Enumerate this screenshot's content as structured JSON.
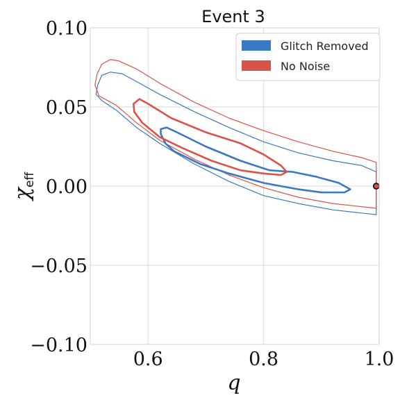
{
  "chart_data": {
    "type": "contour",
    "title": "Event 3",
    "xlabel": "q",
    "ylabel": "χ",
    "ylabel_sub": "eff",
    "xlim": [
      0.5,
      1.0
    ],
    "ylim": [
      -0.1,
      0.1
    ],
    "x_ticks": [
      0.6,
      0.8,
      1.0
    ],
    "x_tick_labels": [
      "0.6",
      "0.8",
      "1.0"
    ],
    "y_ticks": [
      -0.1,
      -0.05,
      0.0,
      0.05,
      0.1
    ],
    "y_tick_labels": [
      "−0.10",
      "−0.05",
      "0.00",
      "0.05",
      "0.10"
    ],
    "grid": true,
    "legend_position": "top-right",
    "series": [
      {
        "name": "Glitch Removed",
        "color": "#3a78c3",
        "contours": [
          {
            "level": "outer",
            "points": [
              [
                0.51,
                0.058
              ],
              [
                0.513,
                0.064
              ],
              [
                0.52,
                0.07
              ],
              [
                0.535,
                0.072
              ],
              [
                0.555,
                0.071
              ],
              [
                0.58,
                0.066
              ],
              [
                0.62,
                0.058
              ],
              [
                0.68,
                0.047
              ],
              [
                0.74,
                0.037
              ],
              [
                0.8,
                0.028
              ],
              [
                0.86,
                0.021
              ],
              [
                0.92,
                0.016
              ],
              [
                0.97,
                0.013
              ],
              [
                0.995,
                0.009
              ],
              [
                0.995,
                -0.018
              ],
              [
                0.97,
                -0.017
              ],
              [
                0.92,
                -0.015
              ],
              [
                0.86,
                -0.011
              ],
              [
                0.8,
                -0.006
              ],
              [
                0.74,
                0.003
              ],
              [
                0.68,
                0.014
              ],
              [
                0.62,
                0.027
              ],
              [
                0.58,
                0.037
              ],
              [
                0.545,
                0.048
              ],
              [
                0.52,
                0.054
              ]
            ]
          },
          {
            "level": "inner",
            "points": [
              [
                0.622,
                0.036
              ],
              [
                0.632,
                0.037
              ],
              [
                0.65,
                0.034
              ],
              [
                0.7,
                0.025
              ],
              [
                0.76,
                0.016
              ],
              [
                0.81,
                0.01
              ],
              [
                0.85,
                0.009
              ],
              [
                0.89,
                0.006
              ],
              [
                0.93,
                0.002
              ],
              [
                0.95,
                -0.002
              ],
              [
                0.94,
                -0.004
              ],
              [
                0.9,
                -0.004
              ],
              [
                0.86,
                -0.002
              ],
              [
                0.8,
                0.002
              ],
              [
                0.74,
                0.008
              ],
              [
                0.69,
                0.014
              ],
              [
                0.645,
                0.022
              ],
              [
                0.63,
                0.027
              ],
              [
                0.622,
                0.033
              ]
            ]
          }
        ]
      },
      {
        "name": "No Noise",
        "color": "#d95349",
        "contours": [
          {
            "level": "outer",
            "points": [
              [
                0.508,
                0.064
              ],
              [
                0.512,
                0.071
              ],
              [
                0.52,
                0.077
              ],
              [
                0.535,
                0.08
              ],
              [
                0.55,
                0.079
              ],
              [
                0.58,
                0.074
              ],
              [
                0.62,
                0.065
              ],
              [
                0.68,
                0.053
              ],
              [
                0.74,
                0.043
              ],
              [
                0.8,
                0.035
              ],
              [
                0.86,
                0.028
              ],
              [
                0.92,
                0.022
              ],
              [
                0.97,
                0.018
              ],
              [
                0.995,
                0.015
              ],
              [
                0.995,
                -0.014
              ],
              [
                0.97,
                -0.013
              ],
              [
                0.92,
                -0.011
              ],
              [
                0.86,
                -0.007
              ],
              [
                0.8,
                -0.001
              ],
              [
                0.74,
                0.007
              ],
              [
                0.68,
                0.017
              ],
              [
                0.62,
                0.029
              ],
              [
                0.58,
                0.04
              ],
              [
                0.545,
                0.051
              ],
              [
                0.515,
                0.057
              ]
            ]
          },
          {
            "level": "inner",
            "points": [
              [
                0.575,
                0.052
              ],
              [
                0.585,
                0.055
              ],
              [
                0.6,
                0.052
              ],
              [
                0.64,
                0.043
              ],
              [
                0.7,
                0.034
              ],
              [
                0.76,
                0.027
              ],
              [
                0.8,
                0.02
              ],
              [
                0.83,
                0.013
              ],
              [
                0.84,
                0.009
              ],
              [
                0.83,
                0.007
              ],
              [
                0.8,
                0.008
              ],
              [
                0.76,
                0.01
              ],
              [
                0.71,
                0.016
              ],
              [
                0.66,
                0.024
              ],
              [
                0.62,
                0.031
              ],
              [
                0.59,
                0.04
              ],
              [
                0.576,
                0.047
              ]
            ]
          }
        ]
      }
    ],
    "marker": {
      "x": 0.995,
      "y": 0.0,
      "fill": "#d95349",
      "edge": "#111111"
    }
  }
}
